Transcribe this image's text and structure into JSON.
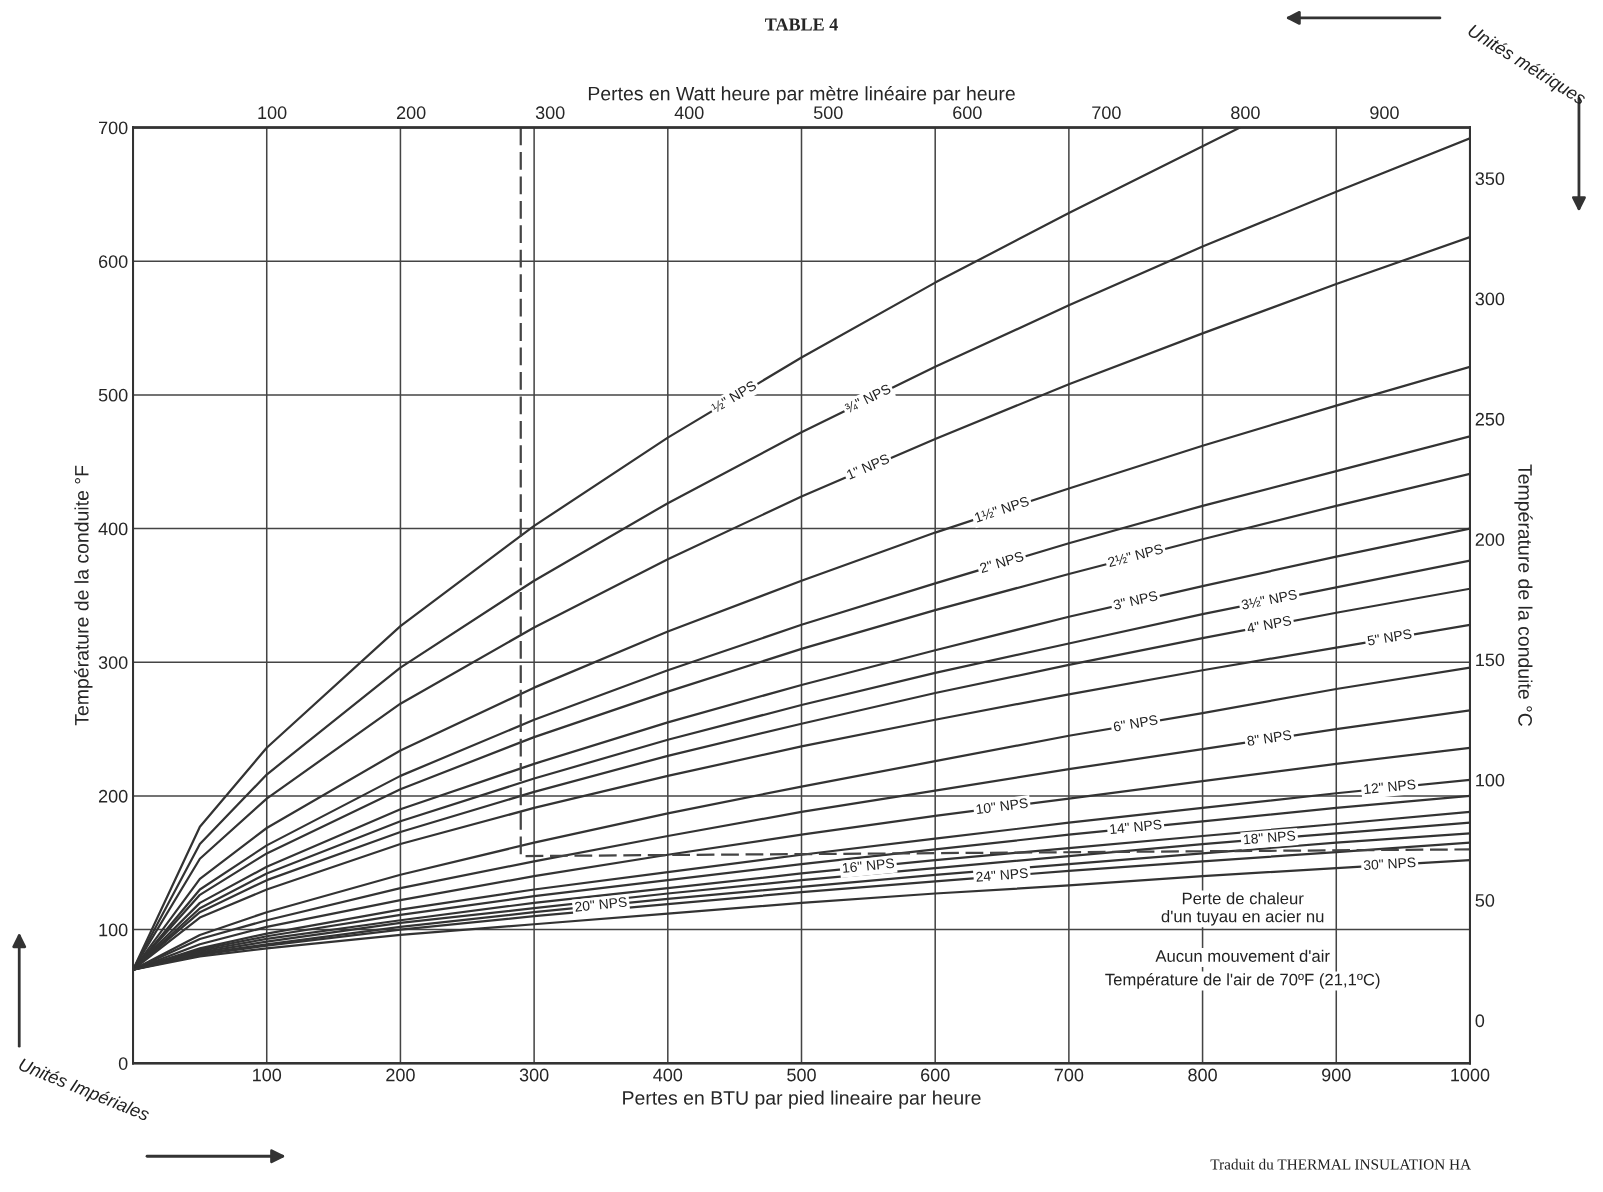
{
  "chart_data": {
    "type": "line",
    "title": "TABLE 4",
    "xlabel": "Pertes en BTU par pied lineaire par heure",
    "x2label": "Pertes en Watt heure par mètre linéaire par heure",
    "ylabel": "Température de la conduite °F",
    "y2label": "Température de la conduite °C",
    "xlim": [
      0,
      1000
    ],
    "xticks": [
      100,
      200,
      300,
      400,
      500,
      600,
      700,
      800,
      900,
      1000
    ],
    "ylim": [
      0,
      700
    ],
    "yticks": [
      0,
      100,
      200,
      300,
      400,
      500,
      600,
      700
    ],
    "x2lim": [
      0,
      961.5
    ],
    "x2ticks": [
      100,
      200,
      300,
      400,
      500,
      600,
      700,
      800,
      900
    ],
    "y2lim": [
      -17.8,
      371.1
    ],
    "y2ticks": [
      0,
      50,
      100,
      150,
      200,
      250,
      300,
      350
    ],
    "grid": true,
    "x": [
      0,
      50,
      100,
      200,
      300,
      400,
      500,
      600,
      700,
      800,
      900,
      1000
    ],
    "series": [
      {
        "name": "½\" NPS",
        "color": "#333333",
        "x": [
          0,
          50,
          100,
          200,
          300,
          400,
          500,
          600,
          700,
          800,
          828
        ],
        "values": [
          70,
          177,
          236,
          327,
          402,
          468,
          528,
          584,
          636,
          686,
          700
        ]
      },
      {
        "name": "¾\" NPS",
        "color": "#333333",
        "values": [
          70,
          164,
          216,
          296,
          361,
          419,
          472,
          521,
          567,
          611,
          652,
          692
        ]
      },
      {
        "name": "1\" NPS",
        "color": "#333333",
        "values": [
          70,
          153,
          198,
          269,
          326,
          377,
          424,
          467,
          508,
          546,
          583,
          618
        ]
      },
      {
        "name": "1½\" NPS",
        "color": "#333333",
        "values": [
          70,
          138,
          176,
          234,
          281,
          323,
          361,
          397,
          430,
          462,
          492,
          521
        ]
      },
      {
        "name": "2\" NPS",
        "color": "#333333",
        "values": [
          70,
          130,
          163,
          215,
          257,
          294,
          328,
          359,
          389,
          417,
          443,
          469
        ]
      },
      {
        "name": "2½\" NPS",
        "color": "#333333",
        "values": [
          70,
          126,
          157,
          205,
          244,
          278,
          310,
          339,
          366,
          392,
          417,
          441
        ]
      },
      {
        "name": "3\" NPS",
        "color": "#333333",
        "values": [
          70,
          120,
          147,
          190,
          224,
          255,
          283,
          309,
          334,
          357,
          379,
          400
        ]
      },
      {
        "name": "3½\" NPS",
        "color": "#333333",
        "values": [
          70,
          116,
          142,
          181,
          213,
          242,
          268,
          292,
          314,
          336,
          356,
          376
        ]
      },
      {
        "name": "4\" NPS",
        "color": "#333333",
        "values": [
          70,
          113,
          137,
          173,
          203,
          230,
          254,
          277,
          298,
          318,
          337,
          355
        ]
      },
      {
        "name": "5\" NPS",
        "color": "#333333",
        "values": [
          70,
          109,
          130,
          164,
          191,
          215,
          237,
          257,
          276,
          294,
          311,
          328
        ]
      },
      {
        "name": "6\" NPS",
        "color": "#333333",
        "values": [
          70,
          96,
          113,
          141,
          165,
          187,
          207,
          226,
          245,
          262,
          280,
          296
        ]
      },
      {
        "name": "8\" NPS",
        "color": "#333333",
        "values": [
          70,
          93,
          107,
          131,
          151,
          170,
          188,
          204,
          220,
          235,
          250,
          264
        ]
      },
      {
        "name": "10\" NPS",
        "color": "#333333",
        "values": [
          70,
          89,
          102,
          122,
          140,
          156,
          171,
          185,
          198,
          211,
          224,
          236
        ]
      },
      {
        "name": "12\" NPS",
        "color": "#333333",
        "values": [
          70,
          86,
          97,
          115,
          130,
          143,
          156,
          168,
          180,
          191,
          202,
          212
        ]
      },
      {
        "name": "14\" NPS",
        "color": "#333333",
        "values": [
          70,
          85,
          95,
          111,
          125,
          137,
          149,
          160,
          171,
          181,
          191,
          200
        ]
      },
      {
        "name": "16\" NPS",
        "color": "#333333",
        "values": [
          70,
          84,
          93,
          107,
          120,
          131,
          142,
          152,
          161,
          170,
          179,
          188
        ]
      },
      {
        "name": "18\" NPS",
        "color": "#333333",
        "values": [
          70,
          83,
          91,
          105,
          116,
          127,
          137,
          146,
          155,
          164,
          172,
          180
        ]
      },
      {
        "name": "20\" NPS",
        "color": "#333333",
        "values": [
          70,
          82,
          89,
          102,
          113,
          123,
          132,
          141,
          149,
          157,
          165,
          172
        ]
      },
      {
        "name": "24\" NPS",
        "color": "#333333",
        "values": [
          70,
          81,
          88,
          100,
          110,
          119,
          128,
          136,
          144,
          151,
          158,
          165
        ]
      },
      {
        "name": "30\" NPS",
        "color": "#333333",
        "values": [
          70,
          80,
          86,
          96,
          104,
          112,
          120,
          127,
          133,
          140,
          146,
          152
        ]
      },
      {
        "color": "#444444",
        "line_style": "dashed",
        "x": [
          290,
          290,
          1000
        ],
        "values": [
          700,
          155,
          160
        ]
      }
    ],
    "annotations": [
      "Perte de chaleur\nd'un tuyau en acier nu",
      "Aucun mouvement d'air",
      "Température de l'air de 70ºF (21,1ºC)",
      "Unités métriques",
      "Unités Impériales",
      "Traduit du THERMAL INSULATION HA"
    ]
  }
}
